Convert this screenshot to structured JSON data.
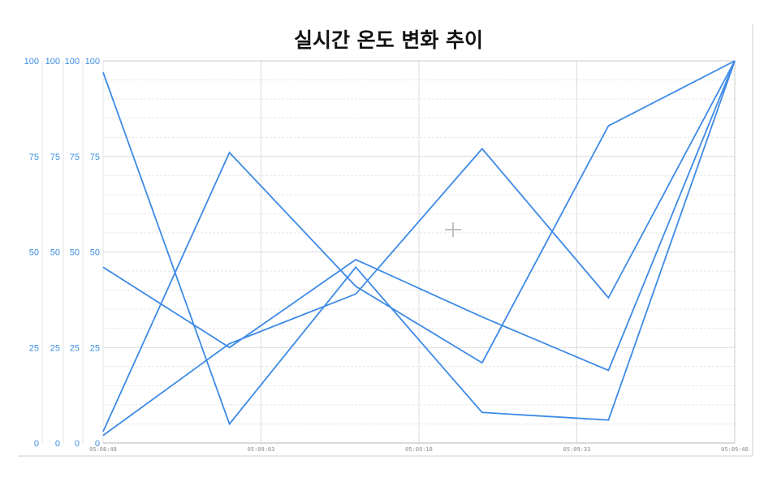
{
  "chart_data": {
    "type": "line",
    "title": "실시간 온도 변화 추이",
    "xlabel": "",
    "ylabel": "",
    "x_tick_labels": [
      "05:08:48",
      "05:09:03",
      "05:09:18",
      "05:09:33",
      "05:09:48"
    ],
    "y_tick_labels": [
      "0",
      "25",
      "50",
      "75",
      "100"
    ],
    "y_axes_count": 4,
    "ylim": [
      0,
      100
    ],
    "x_index": [
      0,
      1,
      2,
      3,
      4,
      5
    ],
    "grid": true,
    "legend": "none",
    "series": [
      {
        "values": [
          97,
          5,
          46,
          8,
          6,
          100
        ]
      },
      {
        "values": [
          46,
          25,
          48,
          33,
          19,
          100
        ]
      },
      {
        "values": [
          3,
          76,
          41,
          21,
          83,
          100
        ]
      },
      {
        "values": [
          2,
          26,
          39,
          77,
          38,
          100
        ]
      }
    ],
    "colors": {
      "line": "#3d8ae6",
      "tick_text": "#3b8de0",
      "grid": "#dddddd",
      "axis": "#c8c8c8"
    }
  }
}
